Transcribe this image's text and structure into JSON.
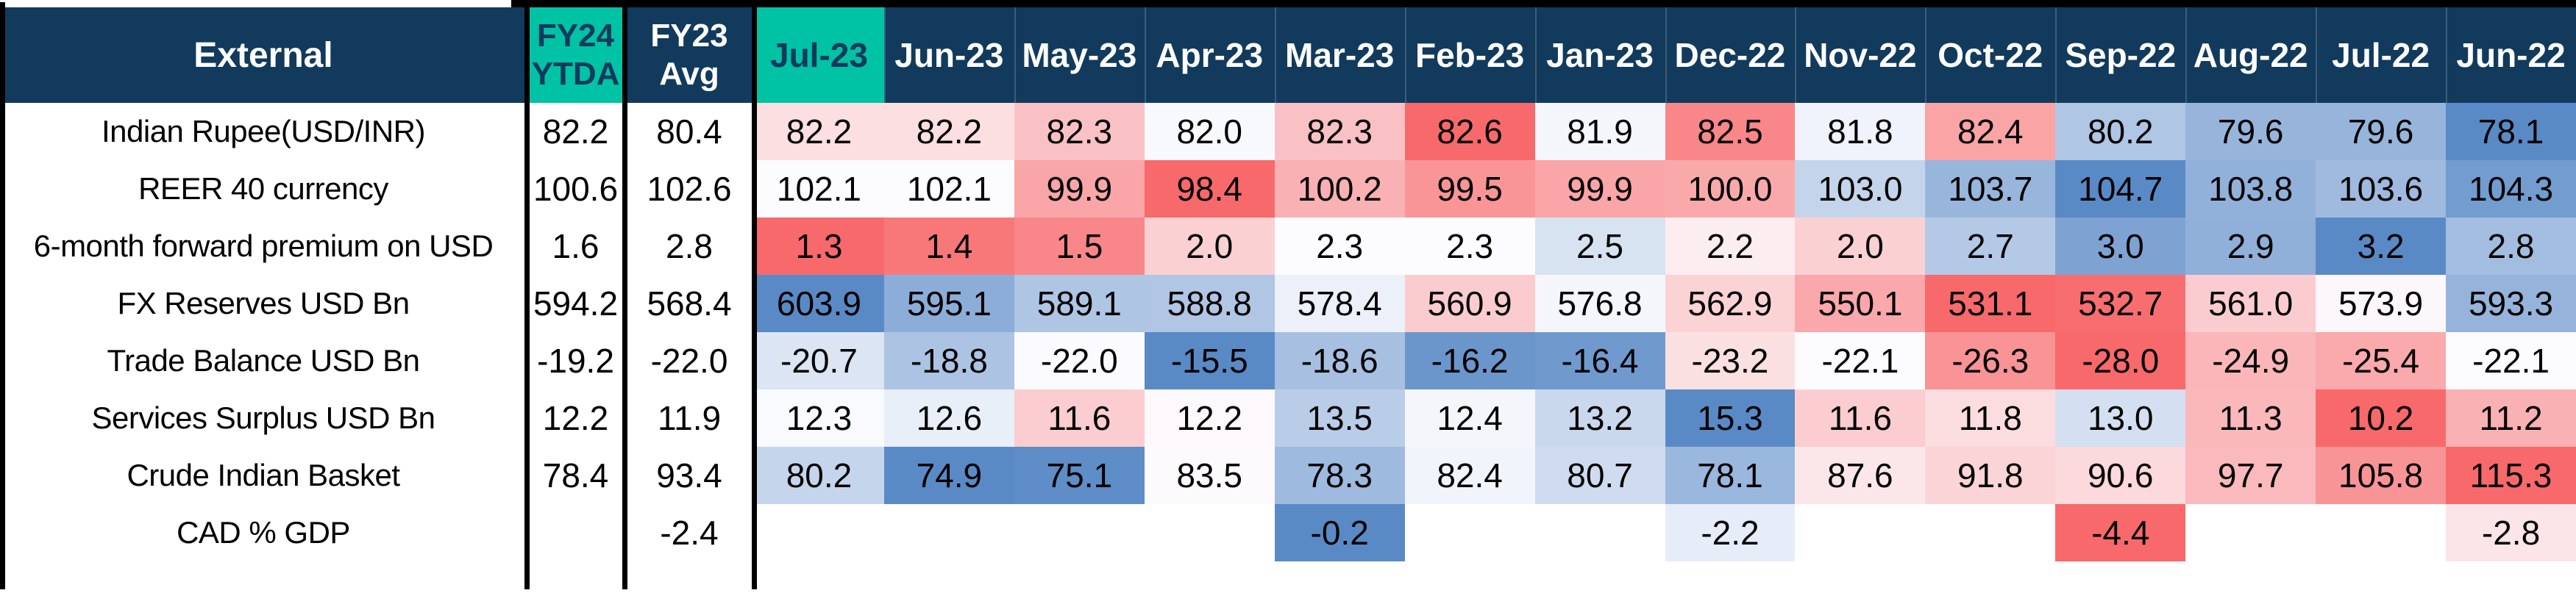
{
  "colors": {
    "navy": "#123A5C",
    "teal": "#00C2A5",
    "border_black": "#000000",
    "header_separator": "rgba(255,255,255,0.18)"
  },
  "chart_data": {
    "type": "heatmap",
    "corner_label": "External",
    "summary_columns": [
      {
        "id": "fy24_ytda",
        "line1": "FY24",
        "line2": "YTDA",
        "highlight": true
      },
      {
        "id": "fy23_avg",
        "line1": "FY23",
        "line2": "Avg",
        "highlight": false
      }
    ],
    "month_columns": [
      "Jul-23",
      "Jun-23",
      "May-23",
      "Apr-23",
      "Mar-23",
      "Feb-23",
      "Jan-23",
      "Dec-22",
      "Nov-22",
      "Oct-22",
      "Sep-22",
      "Aug-22",
      "Jul-22",
      "Jun-22"
    ],
    "highlighted_month": "Jul-23",
    "color_scale": {
      "low": "#F8696B",
      "mid": "#FCFCFF",
      "high": "#5A8AC6",
      "midpoint": "50th percentile"
    },
    "rows": [
      {
        "label": "Indian Rupee(USD/INR)",
        "fy24_ytda": "82.2",
        "fy23_avg": "80.4",
        "high_is_red": true,
        "monthly": [
          82.2,
          82.2,
          82.3,
          82.0,
          82.3,
          82.6,
          81.9,
          82.5,
          81.8,
          82.4,
          80.2,
          79.6,
          79.6,
          78.1
        ]
      },
      {
        "label": "REER 40 currency",
        "fy24_ytda": "100.6",
        "fy23_avg": "102.6",
        "high_is_red": false,
        "monthly": [
          102.1,
          102.1,
          99.9,
          98.4,
          100.2,
          99.5,
          99.9,
          100.0,
          103.0,
          103.7,
          104.7,
          103.8,
          103.6,
          104.3
        ]
      },
      {
        "label": "6-month forward premium on USD",
        "fy24_ytda": "1.6",
        "fy23_avg": "2.8",
        "high_is_red": false,
        "monthly": [
          1.3,
          1.4,
          1.5,
          2.0,
          2.3,
          2.3,
          2.5,
          2.2,
          2.0,
          2.7,
          3.0,
          2.9,
          3.2,
          2.8
        ]
      },
      {
        "label": "FX Reserves USD Bn",
        "fy24_ytda": "594.2",
        "fy23_avg": "568.4",
        "high_is_red": false,
        "monthly": [
          603.9,
          595.1,
          589.1,
          588.8,
          578.4,
          560.9,
          576.8,
          562.9,
          550.1,
          531.1,
          532.7,
          561.0,
          573.9,
          593.3
        ]
      },
      {
        "label": "Trade Balance USD Bn",
        "fy24_ytda": "-19.2",
        "fy23_avg": "-22.0",
        "high_is_red": false,
        "monthly": [
          -20.7,
          -18.8,
          -22.0,
          -15.5,
          -18.6,
          -16.2,
          -16.4,
          -23.2,
          -22.1,
          -26.3,
          -28.0,
          -24.9,
          -25.4,
          -22.1
        ]
      },
      {
        "label": "Services Surplus USD Bn",
        "fy24_ytda": "12.2",
        "fy23_avg": "11.9",
        "high_is_red": false,
        "monthly": [
          12.3,
          12.6,
          11.6,
          12.2,
          13.5,
          12.4,
          13.2,
          15.3,
          11.6,
          11.8,
          13.0,
          11.3,
          10.2,
          11.2
        ]
      },
      {
        "label": "Crude Indian Basket",
        "fy24_ytda": "78.4",
        "fy23_avg": "93.4",
        "high_is_red": true,
        "monthly": [
          80.2,
          74.9,
          75.1,
          83.5,
          78.3,
          82.4,
          80.7,
          78.1,
          87.6,
          91.8,
          90.6,
          97.7,
          105.8,
          115.3
        ]
      },
      {
        "label": "CAD % GDP",
        "fy24_ytda": "",
        "fy23_avg": "-2.4",
        "high_is_red": false,
        "monthly": [
          null,
          null,
          null,
          null,
          -0.2,
          null,
          null,
          -2.2,
          null,
          null,
          -4.4,
          null,
          null,
          -2.8
        ]
      }
    ]
  }
}
